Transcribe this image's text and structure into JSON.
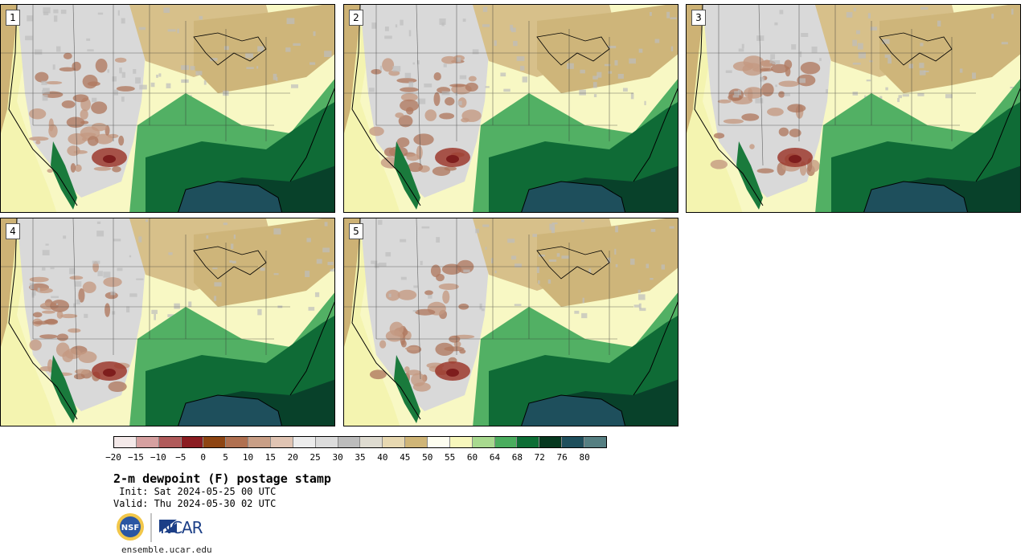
{
  "panels": [
    {
      "label": "1"
    },
    {
      "label": "2"
    },
    {
      "label": "3"
    },
    {
      "label": "4"
    },
    {
      "label": "5"
    }
  ],
  "colorbar": {
    "colors": [
      "#f4e9e9",
      "#d6a0a0",
      "#b05a5a",
      "#8b1d22",
      "#8e4513",
      "#b07050",
      "#c99f86",
      "#e0c4b3",
      "#ececec",
      "#dcdcdc",
      "#bcbcbc",
      "#dedbd0",
      "#e7d8b1",
      "#cfb577",
      "#fefef0",
      "#f7f7bc",
      "#a8d98f",
      "#4aad5e",
      "#0d6e35",
      "#06381f",
      "#1e4f5c",
      "#557f82"
    ],
    "tick_labels": [
      "-20",
      "-15",
      "-10",
      "-5",
      "0",
      "5",
      "10",
      "15",
      "20",
      "25",
      "30",
      "35",
      "40",
      "45",
      "50",
      "55",
      "60",
      "64",
      "68",
      "72",
      "76",
      "80"
    ]
  },
  "title": "2-m dewpoint (F) postage stamp",
  "init": " Init: Sat 2024-05-25 00 UTC",
  "valid": "Valid: Thu 2024-05-30 02 UTC",
  "logos": {
    "nsf": "NSF",
    "ncar": "NCAR"
  },
  "footer": "ensemble.ucar.edu"
}
